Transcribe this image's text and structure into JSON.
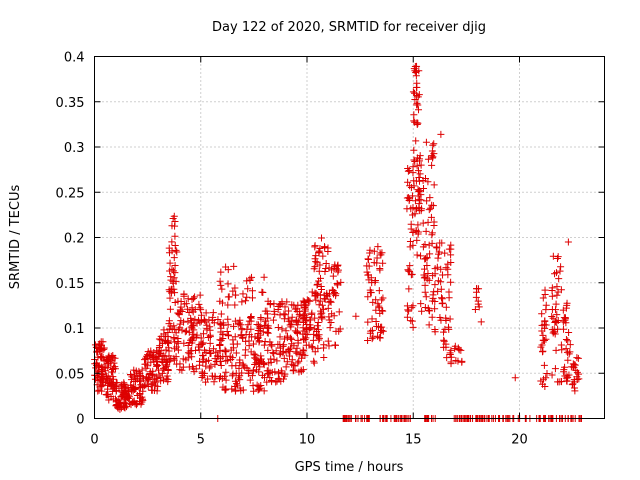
{
  "chart_data": {
    "type": "scatter",
    "title": "Day 122 of 2020, SRMTID for receiver djig",
    "xlabel": "GPS time / hours",
    "ylabel": "SRMTID / TECUs",
    "xlim": [
      0,
      24
    ],
    "ylim": [
      0,
      0.4
    ],
    "xticks": [
      0,
      5,
      10,
      15,
      20
    ],
    "xtick_labels": [
      "0",
      "5",
      "10",
      "15",
      "20"
    ],
    "yticks": [
      0,
      0.05,
      0.1,
      0.15,
      0.2,
      0.25,
      0.3,
      0.35,
      0.4
    ],
    "ytick_labels": [
      "0",
      "0.05",
      "0.1",
      "0.15",
      "0.2",
      "0.25",
      "0.3",
      "0.35",
      "0.4"
    ],
    "grid": true,
    "marker": "plus",
    "color": "#dd0000",
    "series": [
      {
        "name": "SRMTID",
        "clusters": [
          {
            "x": [
              0.0,
              0.5
            ],
            "y": [
              0.03,
              0.085
            ],
            "n": 70
          },
          {
            "x": [
              0.5,
              1.0
            ],
            "y": [
              0.02,
              0.07
            ],
            "n": 60
          },
          {
            "x": [
              1.0,
              1.6
            ],
            "y": [
              0.01,
              0.04
            ],
            "n": 60
          },
          {
            "x": [
              1.6,
              2.3
            ],
            "y": [
              0.015,
              0.055
            ],
            "n": 60
          },
          {
            "x": [
              2.3,
              3.0
            ],
            "y": [
              0.03,
              0.075
            ],
            "n": 60
          },
          {
            "x": [
              3.0,
              3.5
            ],
            "y": [
              0.04,
              0.1
            ],
            "n": 50
          },
          {
            "x": [
              3.5,
              4.0
            ],
            "y": [
              0.06,
              0.2
            ],
            "n": 60
          },
          {
            "x": [
              3.6,
              3.8
            ],
            "y": [
              0.19,
              0.225
            ],
            "n": 6
          },
          {
            "x": [
              4.0,
              5.0
            ],
            "y": [
              0.05,
              0.14
            ],
            "n": 80
          },
          {
            "x": [
              5.0,
              6.0
            ],
            "y": [
              0.04,
              0.12
            ],
            "n": 80
          },
          {
            "x": [
              6.0,
              7.0
            ],
            "y": [
              0.03,
              0.11
            ],
            "n": 70
          },
          {
            "x": [
              5.8,
              7.0
            ],
            "y": [
              0.12,
              0.17
            ],
            "n": 20
          },
          {
            "x": [
              7.0,
              8.0
            ],
            "y": [
              0.03,
              0.12
            ],
            "n": 80
          },
          {
            "x": [
              7.0,
              8.0
            ],
            "y": [
              0.13,
              0.16
            ],
            "n": 12
          },
          {
            "x": [
              8.0,
              9.0
            ],
            "y": [
              0.04,
              0.13
            ],
            "n": 80
          },
          {
            "x": [
              9.0,
              10.0
            ],
            "y": [
              0.05,
              0.13
            ],
            "n": 80
          },
          {
            "x": [
              9.8,
              10.8
            ],
            "y": [
              0.06,
              0.14
            ],
            "n": 70
          },
          {
            "x": [
              10.3,
              11.0
            ],
            "y": [
              0.13,
              0.2
            ],
            "n": 40
          },
          {
            "x": [
              11.0,
              11.6
            ],
            "y": [
              0.08,
              0.17
            ],
            "n": 40
          },
          {
            "x": [
              12.8,
              13.6
            ],
            "y": [
              0.085,
              0.19
            ],
            "n": 60
          },
          {
            "x": [
              14.7,
              15.0
            ],
            "y": [
              0.1,
              0.28
            ],
            "n": 40
          },
          {
            "x": [
              15.0,
              15.3
            ],
            "y": [
              0.18,
              0.39
            ],
            "n": 60
          },
          {
            "x": [
              15.3,
              16.0
            ],
            "y": [
              0.1,
              0.31
            ],
            "n": 70
          },
          {
            "x": [
              16.0,
              16.8
            ],
            "y": [
              0.06,
              0.2
            ],
            "n": 60
          },
          {
            "x": [
              16.9,
              17.3
            ],
            "y": [
              0.06,
              0.08
            ],
            "n": 10
          },
          {
            "x": [
              17.9,
              18.2
            ],
            "y": [
              0.1,
              0.145
            ],
            "n": 10
          },
          {
            "x": [
              21.0,
              21.3
            ],
            "y": [
              0.03,
              0.145
            ],
            "n": 30
          },
          {
            "x": [
              21.5,
              22.0
            ],
            "y": [
              0.04,
              0.18
            ],
            "n": 40
          },
          {
            "x": [
              22.0,
              22.4
            ],
            "y": [
              0.04,
              0.13
            ],
            "n": 30
          },
          {
            "x": [
              22.4,
              22.8
            ],
            "y": [
              0.03,
              0.07
            ],
            "n": 20
          },
          {
            "x": [
              11.7,
              13.0
            ],
            "y": [
              0.0,
              0.0
            ],
            "n": 30
          },
          {
            "x": [
              13.3,
              14.9
            ],
            "y": [
              0.0,
              0.0
            ],
            "n": 30
          },
          {
            "x": [
              15.5,
              16.1
            ],
            "y": [
              0.0,
              0.0
            ],
            "n": 12
          },
          {
            "x": [
              16.8,
              20.5
            ],
            "y": [
              0.0,
              0.0
            ],
            "n": 60
          },
          {
            "x": [
              20.8,
              23.0
            ],
            "y": [
              0.0,
              0.0
            ],
            "n": 30
          }
        ],
        "points": [
          {
            "x": 5.8,
            "y": 0.0
          },
          {
            "x": 12.3,
            "y": 0.113
          },
          {
            "x": 19.8,
            "y": 0.045
          },
          {
            "x": 16.3,
            "y": 0.314
          },
          {
            "x": 15.1,
            "y": 0.389
          },
          {
            "x": 22.3,
            "y": 0.195
          },
          {
            "x": 3.7,
            "y": 0.221
          }
        ]
      }
    ]
  }
}
